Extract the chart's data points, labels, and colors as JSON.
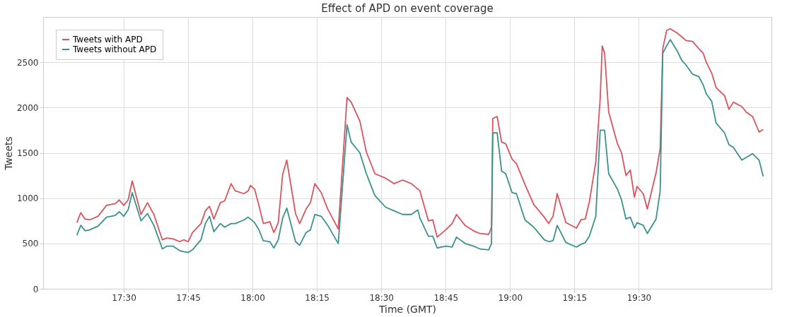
{
  "chart_data": {
    "type": "line",
    "title": "Effect of APD on event coverage",
    "xlabel": "Time (GMT)",
    "ylabel": "Tweets",
    "x": [
      17.318,
      17.333,
      17.35,
      17.367,
      17.4,
      17.433,
      17.467,
      17.483,
      17.5,
      17.517,
      17.533,
      17.567,
      17.592,
      17.617,
      17.65,
      17.667,
      17.692,
      17.717,
      17.733,
      17.75,
      17.767,
      17.8,
      17.817,
      17.833,
      17.85,
      17.875,
      17.892,
      17.917,
      17.933,
      17.967,
      17.983,
      17.992,
      18.008,
      18.025,
      18.042,
      18.067,
      18.083,
      18.1,
      18.117,
      18.133,
      18.167,
      18.183,
      18.208,
      18.225,
      18.242,
      18.267,
      18.292,
      18.333,
      18.367,
      18.383,
      18.417,
      18.442,
      18.475,
      18.517,
      18.55,
      18.583,
      18.617,
      18.642,
      18.65,
      18.683,
      18.7,
      18.717,
      18.75,
      18.775,
      18.792,
      18.825,
      18.858,
      18.883,
      18.917,
      18.928,
      18.933,
      18.95,
      18.967,
      18.983,
      19.008,
      19.025,
      19.058,
      19.092,
      19.133,
      19.15,
      19.167,
      19.183,
      19.217,
      19.258,
      19.275,
      19.292,
      19.308,
      19.333,
      19.35,
      19.358,
      19.367,
      19.383,
      19.417,
      19.433,
      19.45,
      19.467,
      19.483,
      19.493,
      19.517,
      19.533,
      19.567,
      19.583,
      19.593,
      19.608,
      19.622,
      19.65,
      19.667,
      19.683,
      19.708,
      19.733,
      19.75,
      19.762,
      19.783,
      19.8,
      19.833,
      19.85,
      19.867,
      19.9,
      19.917,
      19.942,
      19.967,
      19.983
    ],
    "series": [
      {
        "name": "Tweets with APD",
        "color": "#d9545c",
        "values": [
          730,
          840,
          770,
          760,
          800,
          920,
          940,
          980,
          920,
          980,
          1190,
          820,
          950,
          820,
          540,
          560,
          550,
          520,
          540,
          520,
          620,
          720,
          860,
          910,
          770,
          950,
          970,
          1160,
          1080,
          1050,
          1080,
          1140,
          1100,
          920,
          720,
          740,
          620,
          730,
          1260,
          1420,
          830,
          720,
          880,
          950,
          1160,
          1060,
          880,
          660,
          2110,
          2060,
          1850,
          1510,
          1270,
          1220,
          1160,
          1200,
          1160,
          1100,
          1080,
          750,
          760,
          570,
          650,
          720,
          820,
          700,
          640,
          610,
          600,
          680,
          1880,
          1900,
          1620,
          1600,
          1430,
          1380,
          1150,
          930,
          790,
          720,
          800,
          1050,
          730,
          670,
          760,
          770,
          960,
          1400,
          2100,
          2680,
          2600,
          1950,
          1600,
          1500,
          1250,
          1310,
          1010,
          1130,
          1050,
          880,
          1280,
          1550,
          2650,
          2850,
          2870,
          2820,
          2780,
          2740,
          2730,
          2650,
          2600,
          2500,
          2380,
          2220,
          2130,
          1980,
          2060,
          2010,
          1950,
          1900,
          1730,
          1760
        ]
      },
      {
        "name": "Tweets without APD",
        "color": "#3a918f",
        "values": [
          590,
          700,
          640,
          650,
          690,
          790,
          810,
          850,
          800,
          870,
          1060,
          750,
          830,
          700,
          440,
          470,
          470,
          420,
          410,
          400,
          430,
          540,
          720,
          800,
          630,
          720,
          680,
          720,
          720,
          760,
          790,
          770,
          730,
          650,
          530,
          520,
          450,
          540,
          780,
          890,
          520,
          480,
          620,
          650,
          820,
          800,
          700,
          500,
          1810,
          1620,
          1500,
          1270,
          1030,
          900,
          860,
          820,
          820,
          870,
          780,
          580,
          580,
          450,
          470,
          460,
          570,
          500,
          470,
          440,
          430,
          500,
          1720,
          1720,
          1300,
          1270,
          1060,
          1050,
          760,
          680,
          540,
          520,
          530,
          700,
          510,
          460,
          490,
          510,
          580,
          800,
          1750,
          1750,
          1750,
          1270,
          1100,
          980,
          770,
          790,
          670,
          730,
          700,
          610,
          770,
          1080,
          2600,
          2680,
          2750,
          2620,
          2520,
          2470,
          2370,
          2340,
          2250,
          2150,
          2070,
          1830,
          1720,
          1590,
          1560,
          1420,
          1450,
          1490,
          1420,
          1240
        ]
      }
    ],
    "xlim": [
      17.187,
      20.015
    ],
    "ylim": [
      0,
      3000
    ],
    "xticks": [
      {
        "value": 17.5,
        "label": "17:30"
      },
      {
        "value": 17.75,
        "label": "17:45"
      },
      {
        "value": 18.0,
        "label": "18:00"
      },
      {
        "value": 18.25,
        "label": "18:15"
      },
      {
        "value": 18.5,
        "label": "18:30"
      },
      {
        "value": 18.75,
        "label": "18:45"
      },
      {
        "value": 19.0,
        "label": "19:00"
      },
      {
        "value": 19.25,
        "label": "19:15"
      },
      {
        "value": 19.5,
        "label": "19:30"
      }
    ],
    "yticks": [
      0,
      500,
      1000,
      1500,
      2000,
      2500
    ],
    "grid": true,
    "legend": "top left",
    "line_style": "solid",
    "marker": "none"
  }
}
